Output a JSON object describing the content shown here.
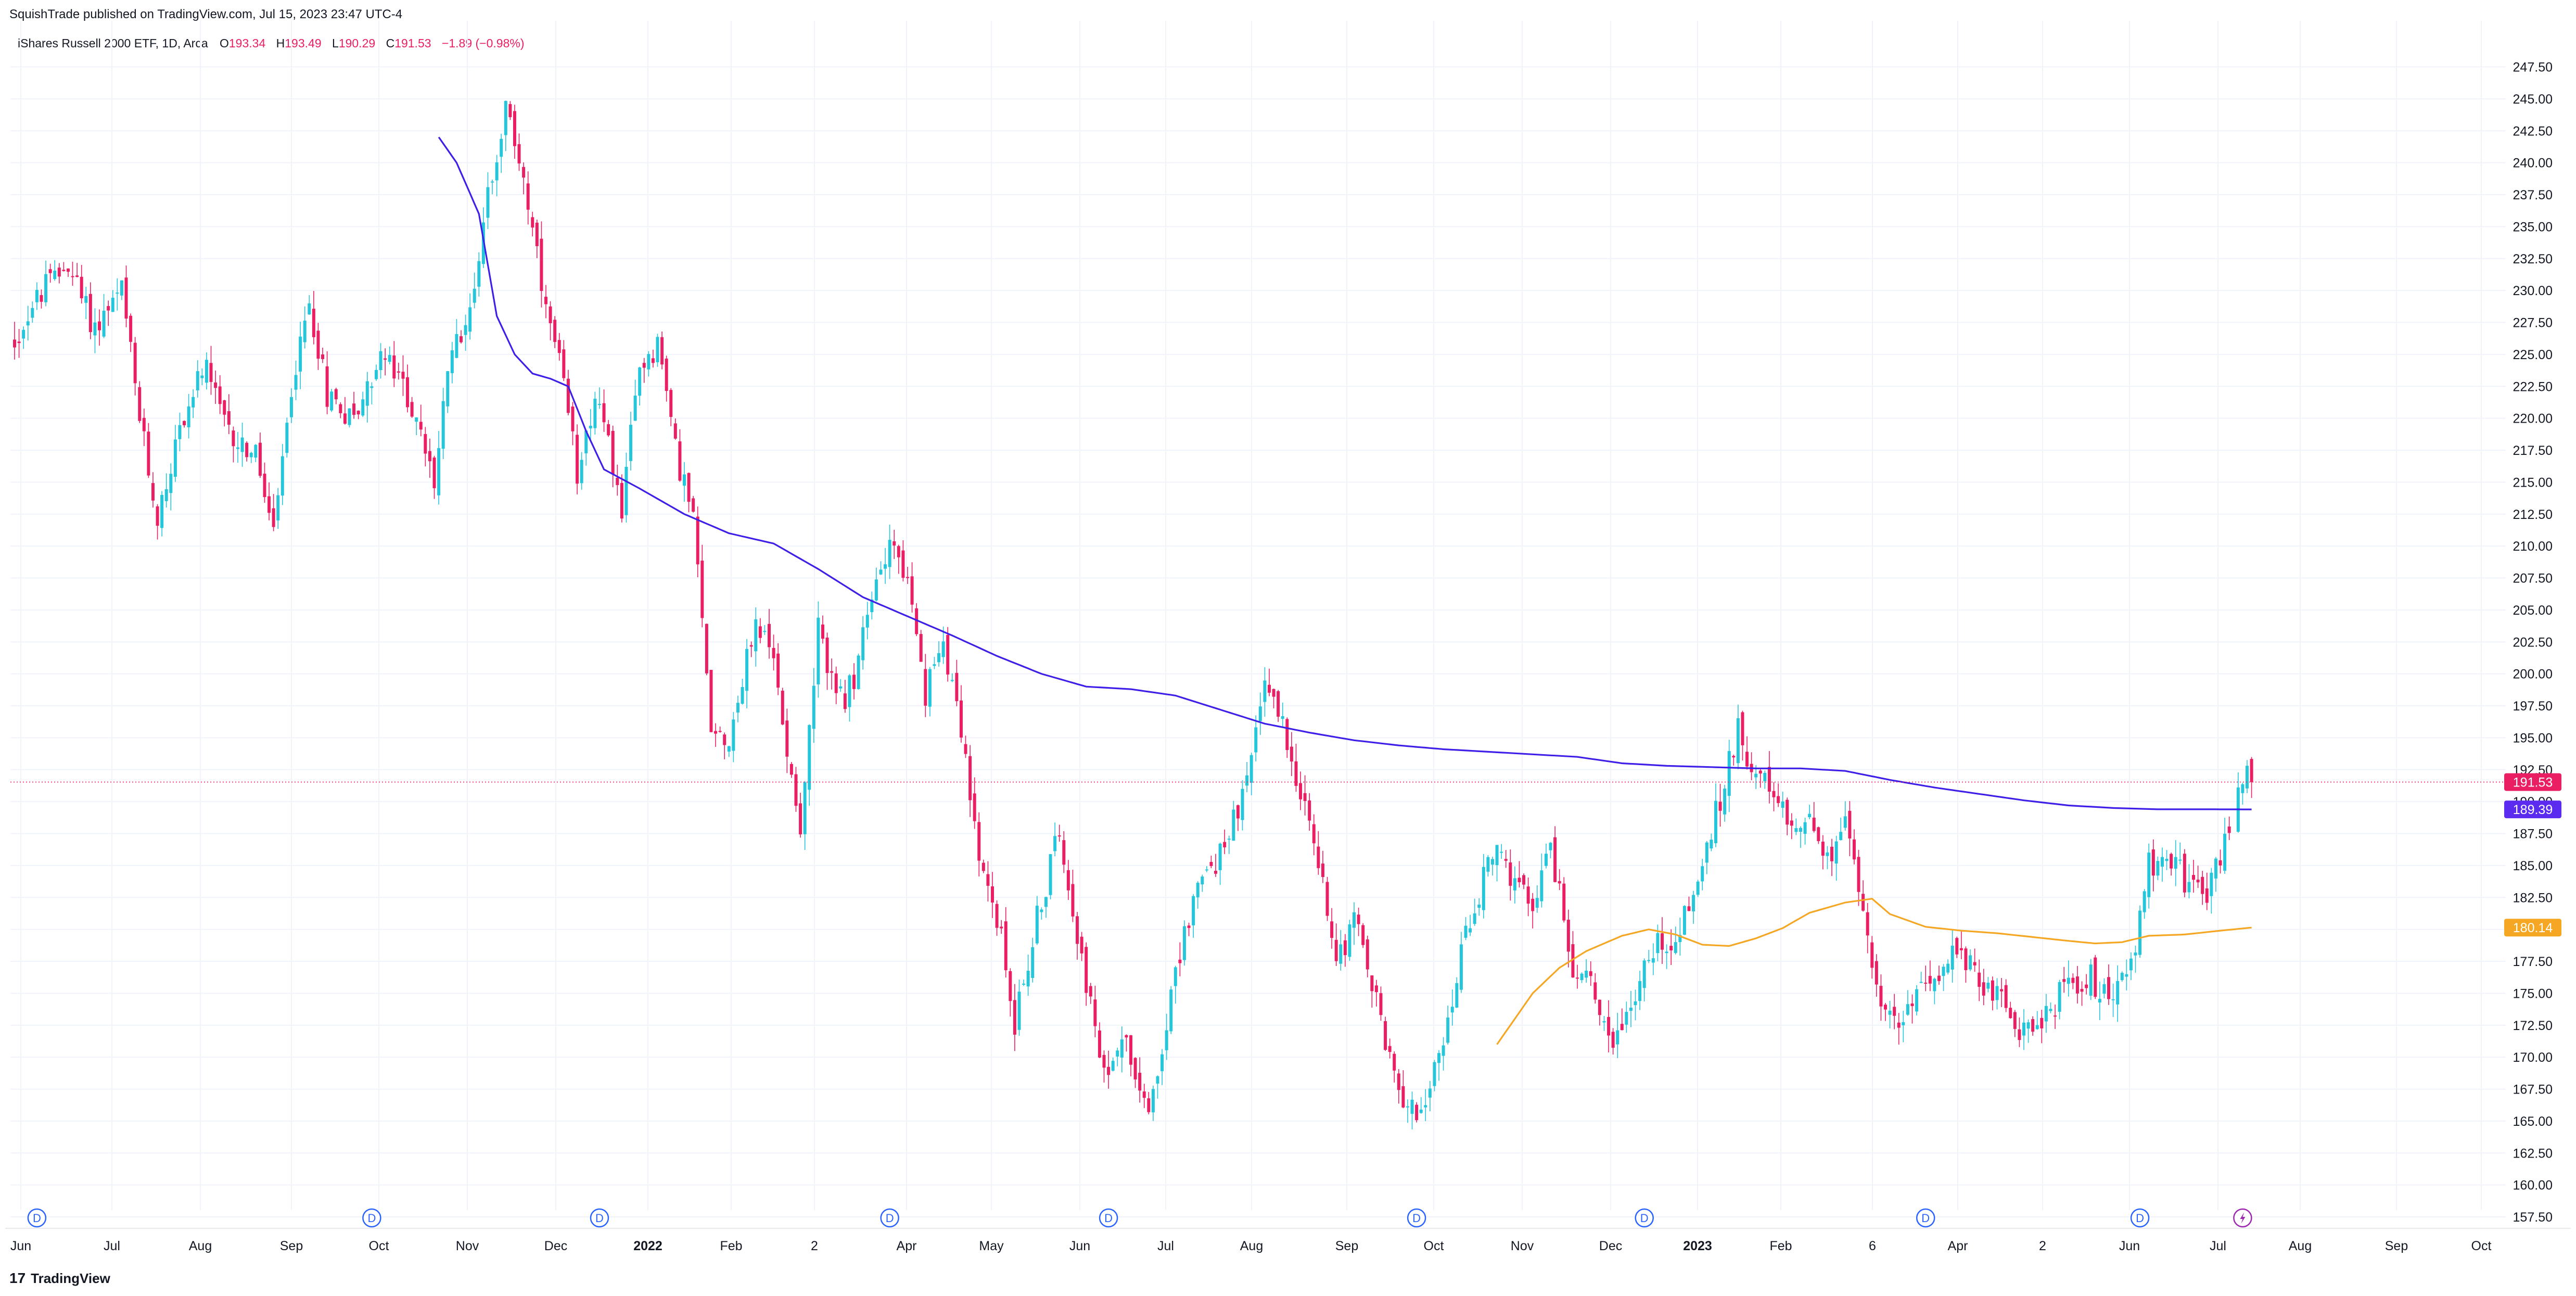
{
  "header": {
    "published": "SquishTrade published on TradingView.com, Jul 15, 2023 23:47 UTC-4"
  },
  "legend": {
    "symbol": "iShares Russell 2000 ETF, 1D, Arca",
    "o_label": "O",
    "o_value": "193.34",
    "h_label": "H",
    "h_value": "193.49",
    "l_label": "L",
    "l_value": "190.29",
    "c_label": "C",
    "c_value": "191.53",
    "change": "−1.89 (−0.98%)"
  },
  "footer": {
    "brand": "TradingView",
    "logo_glyph": "17"
  },
  "colors": {
    "up": "#26c6da",
    "down": "#e91e63",
    "ma_long": "#3d1fe8",
    "ma_short": "#f5a623",
    "last_price": "#e91e63",
    "grid": "#f0f3fa"
  },
  "chart_data": {
    "type": "candlestick",
    "ylim": [
      156.5,
      250
    ],
    "y_ticks": [
      "157.50",
      "160.00",
      "162.50",
      "165.00",
      "167.50",
      "170.00",
      "172.50",
      "175.00",
      "177.50",
      "180.00",
      "182.50",
      "185.00",
      "187.50",
      "190.00",
      "192.50",
      "195.00",
      "197.50",
      "200.00",
      "202.50",
      "205.00",
      "207.50",
      "210.00",
      "212.50",
      "215.00",
      "217.50",
      "220.00",
      "222.50",
      "225.00",
      "227.50",
      "230.00",
      "232.50",
      "235.00",
      "237.50",
      "240.00",
      "242.50",
      "245.00",
      "247.50"
    ],
    "x_ticks": [
      {
        "label": "Jun",
        "bold": false
      },
      {
        "label": "Jul",
        "bold": false
      },
      {
        "label": "Aug",
        "bold": false
      },
      {
        "label": "Sep",
        "bold": false
      },
      {
        "label": "Oct",
        "bold": false
      },
      {
        "label": "Nov",
        "bold": false
      },
      {
        "label": "Dec",
        "bold": false
      },
      {
        "label": "2022",
        "bold": true
      },
      {
        "label": "Feb",
        "bold": false
      },
      {
        "label": "2",
        "bold": false
      },
      {
        "label": "Apr",
        "bold": false
      },
      {
        "label": "May",
        "bold": false
      },
      {
        "label": "Jun",
        "bold": false
      },
      {
        "label": "Jul",
        "bold": false
      },
      {
        "label": "Aug",
        "bold": false
      },
      {
        "label": "Sep",
        "bold": false
      },
      {
        "label": "Oct",
        "bold": false
      },
      {
        "label": "Nov",
        "bold": false
      },
      {
        "label": "Dec",
        "bold": false
      },
      {
        "label": "2023",
        "bold": true
      },
      {
        "label": "Feb",
        "bold": false
      },
      {
        "label": "6",
        "bold": false
      },
      {
        "label": "Apr",
        "bold": false
      },
      {
        "label": "2",
        "bold": false
      },
      {
        "label": "Jun",
        "bold": false
      },
      {
        "label": "Jul",
        "bold": false
      },
      {
        "label": "Aug",
        "bold": false
      },
      {
        "label": "Sep",
        "bold": false
      },
      {
        "label": "Oct",
        "bold": false
      }
    ],
    "dividend_marker_label": "D",
    "dividend_markers": [
      {
        "bar": 5,
        "type": "D"
      },
      {
        "bar": 80,
        "type": "D"
      },
      {
        "bar": 131,
        "type": "D"
      },
      {
        "bar": 196,
        "type": "D"
      },
      {
        "bar": 245,
        "type": "D"
      },
      {
        "bar": 314,
        "type": "D"
      },
      {
        "bar": 365,
        "type": "D"
      },
      {
        "bar": 428,
        "type": "D"
      },
      {
        "bar": 476,
        "type": "D"
      },
      {
        "bar": 499,
        "type": "event"
      }
    ],
    "price_labels": [
      {
        "value": 191.53,
        "text": "191.53",
        "color": "#e91e63"
      },
      {
        "value": 189.39,
        "text": "189.39",
        "color": "#5b2cf0"
      },
      {
        "value": 180.14,
        "text": "180.14",
        "color": "#f5a623"
      }
    ],
    "close_anchors": [
      [
        0,
        226
      ],
      [
        6,
        230
      ],
      [
        12,
        232
      ],
      [
        18,
        227
      ],
      [
        24,
        230
      ],
      [
        28,
        220
      ],
      [
        32,
        212
      ],
      [
        36,
        218
      ],
      [
        42,
        224
      ],
      [
        48,
        219
      ],
      [
        54,
        217
      ],
      [
        58,
        211
      ],
      [
        62,
        222
      ],
      [
        66,
        229
      ],
      [
        70,
        222
      ],
      [
        76,
        220
      ],
      [
        82,
        225
      ],
      [
        88,
        222
      ],
      [
        94,
        215
      ],
      [
        98,
        226
      ],
      [
        102,
        228
      ],
      [
        106,
        238
      ],
      [
        110,
        244
      ],
      [
        114,
        239
      ],
      [
        118,
        230
      ],
      [
        122,
        224
      ],
      [
        126,
        216
      ],
      [
        130,
        222
      ],
      [
        136,
        213
      ],
      [
        140,
        224
      ],
      [
        144,
        226
      ],
      [
        148,
        218
      ],
      [
        152,
        212
      ],
      [
        156,
        196
      ],
      [
        160,
        195
      ],
      [
        166,
        204
      ],
      [
        170,
        201
      ],
      [
        176,
        188
      ],
      [
        180,
        203
      ],
      [
        186,
        197
      ],
      [
        190,
        203
      ],
      [
        196,
        211
      ],
      [
        200,
        207
      ],
      [
        204,
        198
      ],
      [
        208,
        203
      ],
      [
        212,
        196
      ],
      [
        216,
        185
      ],
      [
        220,
        181
      ],
      [
        224,
        173
      ],
      [
        228,
        179
      ],
      [
        234,
        188
      ],
      [
        240,
        176
      ],
      [
        244,
        168
      ],
      [
        248,
        172
      ],
      [
        254,
        166
      ],
      [
        260,
        176
      ],
      [
        264,
        183
      ],
      [
        270,
        186
      ],
      [
        276,
        191
      ],
      [
        280,
        200
      ],
      [
        284,
        196
      ],
      [
        288,
        191
      ],
      [
        292,
        185
      ],
      [
        296,
        178
      ],
      [
        300,
        181
      ],
      [
        306,
        173
      ],
      [
        310,
        167
      ],
      [
        316,
        166
      ],
      [
        320,
        171
      ],
      [
        324,
        178
      ],
      [
        328,
        183
      ],
      [
        332,
        187
      ],
      [
        336,
        183
      ],
      [
        340,
        182
      ],
      [
        344,
        187
      ],
      [
        348,
        178
      ],
      [
        354,
        175
      ],
      [
        358,
        171
      ],
      [
        364,
        176
      ],
      [
        368,
        179
      ],
      [
        372,
        179
      ],
      [
        378,
        185
      ],
      [
        382,
        190
      ],
      [
        386,
        196
      ],
      [
        390,
        192
      ],
      [
        394,
        190
      ],
      [
        398,
        188
      ],
      [
        402,
        189
      ],
      [
        406,
        185
      ],
      [
        410,
        188
      ],
      [
        414,
        182
      ],
      [
        418,
        174
      ],
      [
        422,
        172
      ],
      [
        426,
        175
      ],
      [
        430,
        177
      ],
      [
        434,
        178
      ],
      [
        438,
        177
      ],
      [
        442,
        176
      ],
      [
        446,
        174
      ],
      [
        450,
        172
      ],
      [
        454,
        173
      ],
      [
        458,
        175
      ],
      [
        462,
        176
      ],
      [
        466,
        176
      ],
      [
        470,
        175
      ],
      [
        474,
        177
      ],
      [
        478,
        185
      ],
      [
        482,
        186
      ],
      [
        486,
        184
      ],
      [
        490,
        182
      ],
      [
        494,
        186
      ],
      [
        497,
        189
      ],
      [
        500,
        193
      ],
      [
        501,
        191.53
      ]
    ],
    "ma_long_anchors": [
      [
        95,
        242
      ],
      [
        99,
        240
      ],
      [
        104,
        236
      ],
      [
        108,
        228
      ],
      [
        112,
        225
      ],
      [
        116,
        223.5
      ],
      [
        120,
        223.1
      ],
      [
        124,
        222.5
      ],
      [
        128,
        219
      ],
      [
        132,
        216
      ],
      [
        140,
        214.5
      ],
      [
        150,
        212.5
      ],
      [
        160,
        211
      ],
      [
        170,
        210.2
      ],
      [
        180,
        208.2
      ],
      [
        190,
        206
      ],
      [
        200,
        204.5
      ],
      [
        210,
        203
      ],
      [
        220,
        201.4
      ],
      [
        230,
        200
      ],
      [
        240,
        199
      ],
      [
        250,
        198.8
      ],
      [
        260,
        198.3
      ],
      [
        270,
        197.2
      ],
      [
        280,
        196.1
      ],
      [
        290,
        195.4
      ],
      [
        300,
        194.8
      ],
      [
        310,
        194.4
      ],
      [
        320,
        194.1
      ],
      [
        330,
        193.9
      ],
      [
        340,
        193.7
      ],
      [
        350,
        193.5
      ],
      [
        360,
        193
      ],
      [
        370,
        192.8
      ],
      [
        380,
        192.7
      ],
      [
        390,
        192.6
      ],
      [
        400,
        192.6
      ],
      [
        410,
        192.4
      ],
      [
        420,
        191.7
      ],
      [
        430,
        191.1
      ],
      [
        440,
        190.6
      ],
      [
        450,
        190.1
      ],
      [
        460,
        189.7
      ],
      [
        470,
        189.5
      ],
      [
        480,
        189.4
      ],
      [
        488,
        189.4
      ],
      [
        501,
        189.39
      ]
    ],
    "ma_short_anchors": [
      [
        332,
        171
      ],
      [
        336,
        173
      ],
      [
        340,
        175
      ],
      [
        346,
        177
      ],
      [
        352,
        178.3
      ],
      [
        360,
        179.5
      ],
      [
        366,
        180
      ],
      [
        372,
        179.6
      ],
      [
        378,
        178.8
      ],
      [
        384,
        178.7
      ],
      [
        390,
        179.3
      ],
      [
        396,
        180.1
      ],
      [
        402,
        181.3
      ],
      [
        410,
        182.1
      ],
      [
        416,
        182.4
      ],
      [
        420,
        181.2
      ],
      [
        428,
        180.2
      ],
      [
        436,
        179.9
      ],
      [
        444,
        179.7
      ],
      [
        452,
        179.4
      ],
      [
        460,
        179.1
      ],
      [
        466,
        178.9
      ],
      [
        472,
        179
      ],
      [
        478,
        179.5
      ],
      [
        486,
        179.6
      ],
      [
        494,
        179.9
      ],
      [
        501,
        180.14
      ]
    ]
  }
}
